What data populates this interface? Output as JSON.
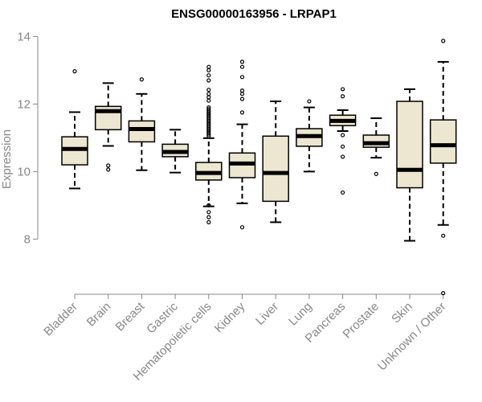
{
  "chart_data": {
    "type": "boxplot",
    "title": "ENSG00000163956 - LRPAP1",
    "xlabel": "",
    "ylabel": "Expression",
    "ylim": [
      6.2,
      14.2
    ],
    "yticks": [
      8,
      10,
      12,
      14
    ],
    "box_fill": "#ede6d0",
    "categories": [
      "Bladder",
      "Brain",
      "Breast",
      "Gastric",
      "Hematopoietic cells",
      "Kidney",
      "Liver",
      "Lung",
      "Pancreas",
      "Prostate",
      "Skin",
      "Unknown / Other"
    ],
    "boxes": [
      {
        "name": "Bladder",
        "whisker_low": 9.5,
        "q1": 10.2,
        "median": 10.67,
        "q3": 11.03,
        "whisker_high": 11.76,
        "outliers": [
          12.97
        ]
      },
      {
        "name": "Brain",
        "whisker_low": 10.76,
        "q1": 11.24,
        "median": 11.79,
        "q3": 11.93,
        "whisker_high": 12.62,
        "outliers": [
          10.18,
          10.06
        ]
      },
      {
        "name": "Breast",
        "whisker_low": 10.04,
        "q1": 10.88,
        "median": 11.26,
        "q3": 11.5,
        "whisker_high": 12.3,
        "outliers": [
          12.73
        ]
      },
      {
        "name": "Gastric",
        "whisker_low": 9.97,
        "q1": 10.44,
        "median": 10.58,
        "q3": 10.81,
        "whisker_high": 11.24,
        "outliers": []
      },
      {
        "name": "Hematopoietic cells",
        "whisker_low": 8.97,
        "q1": 9.75,
        "median": 9.96,
        "q3": 10.27,
        "whisker_high": 10.99,
        "outliers": [
          8.5,
          8.65,
          8.8,
          9.0,
          11.05,
          11.1,
          11.15,
          11.2,
          11.25,
          11.3,
          11.35,
          11.4,
          11.45,
          11.5,
          11.55,
          11.6,
          11.65,
          11.7,
          11.75,
          11.8,
          11.85,
          11.9,
          12.1,
          12.2,
          12.3,
          12.42,
          12.7,
          12.85,
          13.0,
          13.1
        ]
      },
      {
        "name": "Kidney",
        "whisker_low": 9.06,
        "q1": 9.82,
        "median": 10.24,
        "q3": 10.55,
        "whisker_high": 11.4,
        "outliers": [
          8.35,
          11.75,
          12.15,
          12.3,
          12.4,
          12.8,
          13.1,
          13.25
        ]
      },
      {
        "name": "Liver",
        "whisker_low": 8.5,
        "q1": 9.12,
        "median": 9.96,
        "q3": 11.05,
        "whisker_high": 12.08,
        "outliers": []
      },
      {
        "name": "Lung",
        "whisker_low": 10.0,
        "q1": 10.75,
        "median": 11.05,
        "q3": 11.27,
        "whisker_high": 11.9,
        "outliers": [
          12.08
        ]
      },
      {
        "name": "Pancreas",
        "whisker_low": 11.2,
        "q1": 11.36,
        "median": 11.5,
        "q3": 11.67,
        "whisker_high": 11.82,
        "outliers": [
          12.23,
          12.44,
          11.08,
          10.74,
          10.44,
          9.38
        ]
      },
      {
        "name": "Prostate",
        "whisker_low": 10.41,
        "q1": 10.72,
        "median": 10.84,
        "q3": 11.08,
        "whisker_high": 11.58,
        "outliers": [
          9.93
        ]
      },
      {
        "name": "Skin",
        "whisker_low": 7.95,
        "q1": 9.52,
        "median": 10.05,
        "q3": 12.08,
        "whisker_high": 12.44,
        "outliers": []
      },
      {
        "name": "Unknown / Other",
        "whisker_low": 8.42,
        "q1": 10.25,
        "median": 10.78,
        "q3": 11.53,
        "whisker_high": 13.25,
        "outliers": [
          13.87,
          8.1,
          6.4
        ]
      }
    ]
  }
}
